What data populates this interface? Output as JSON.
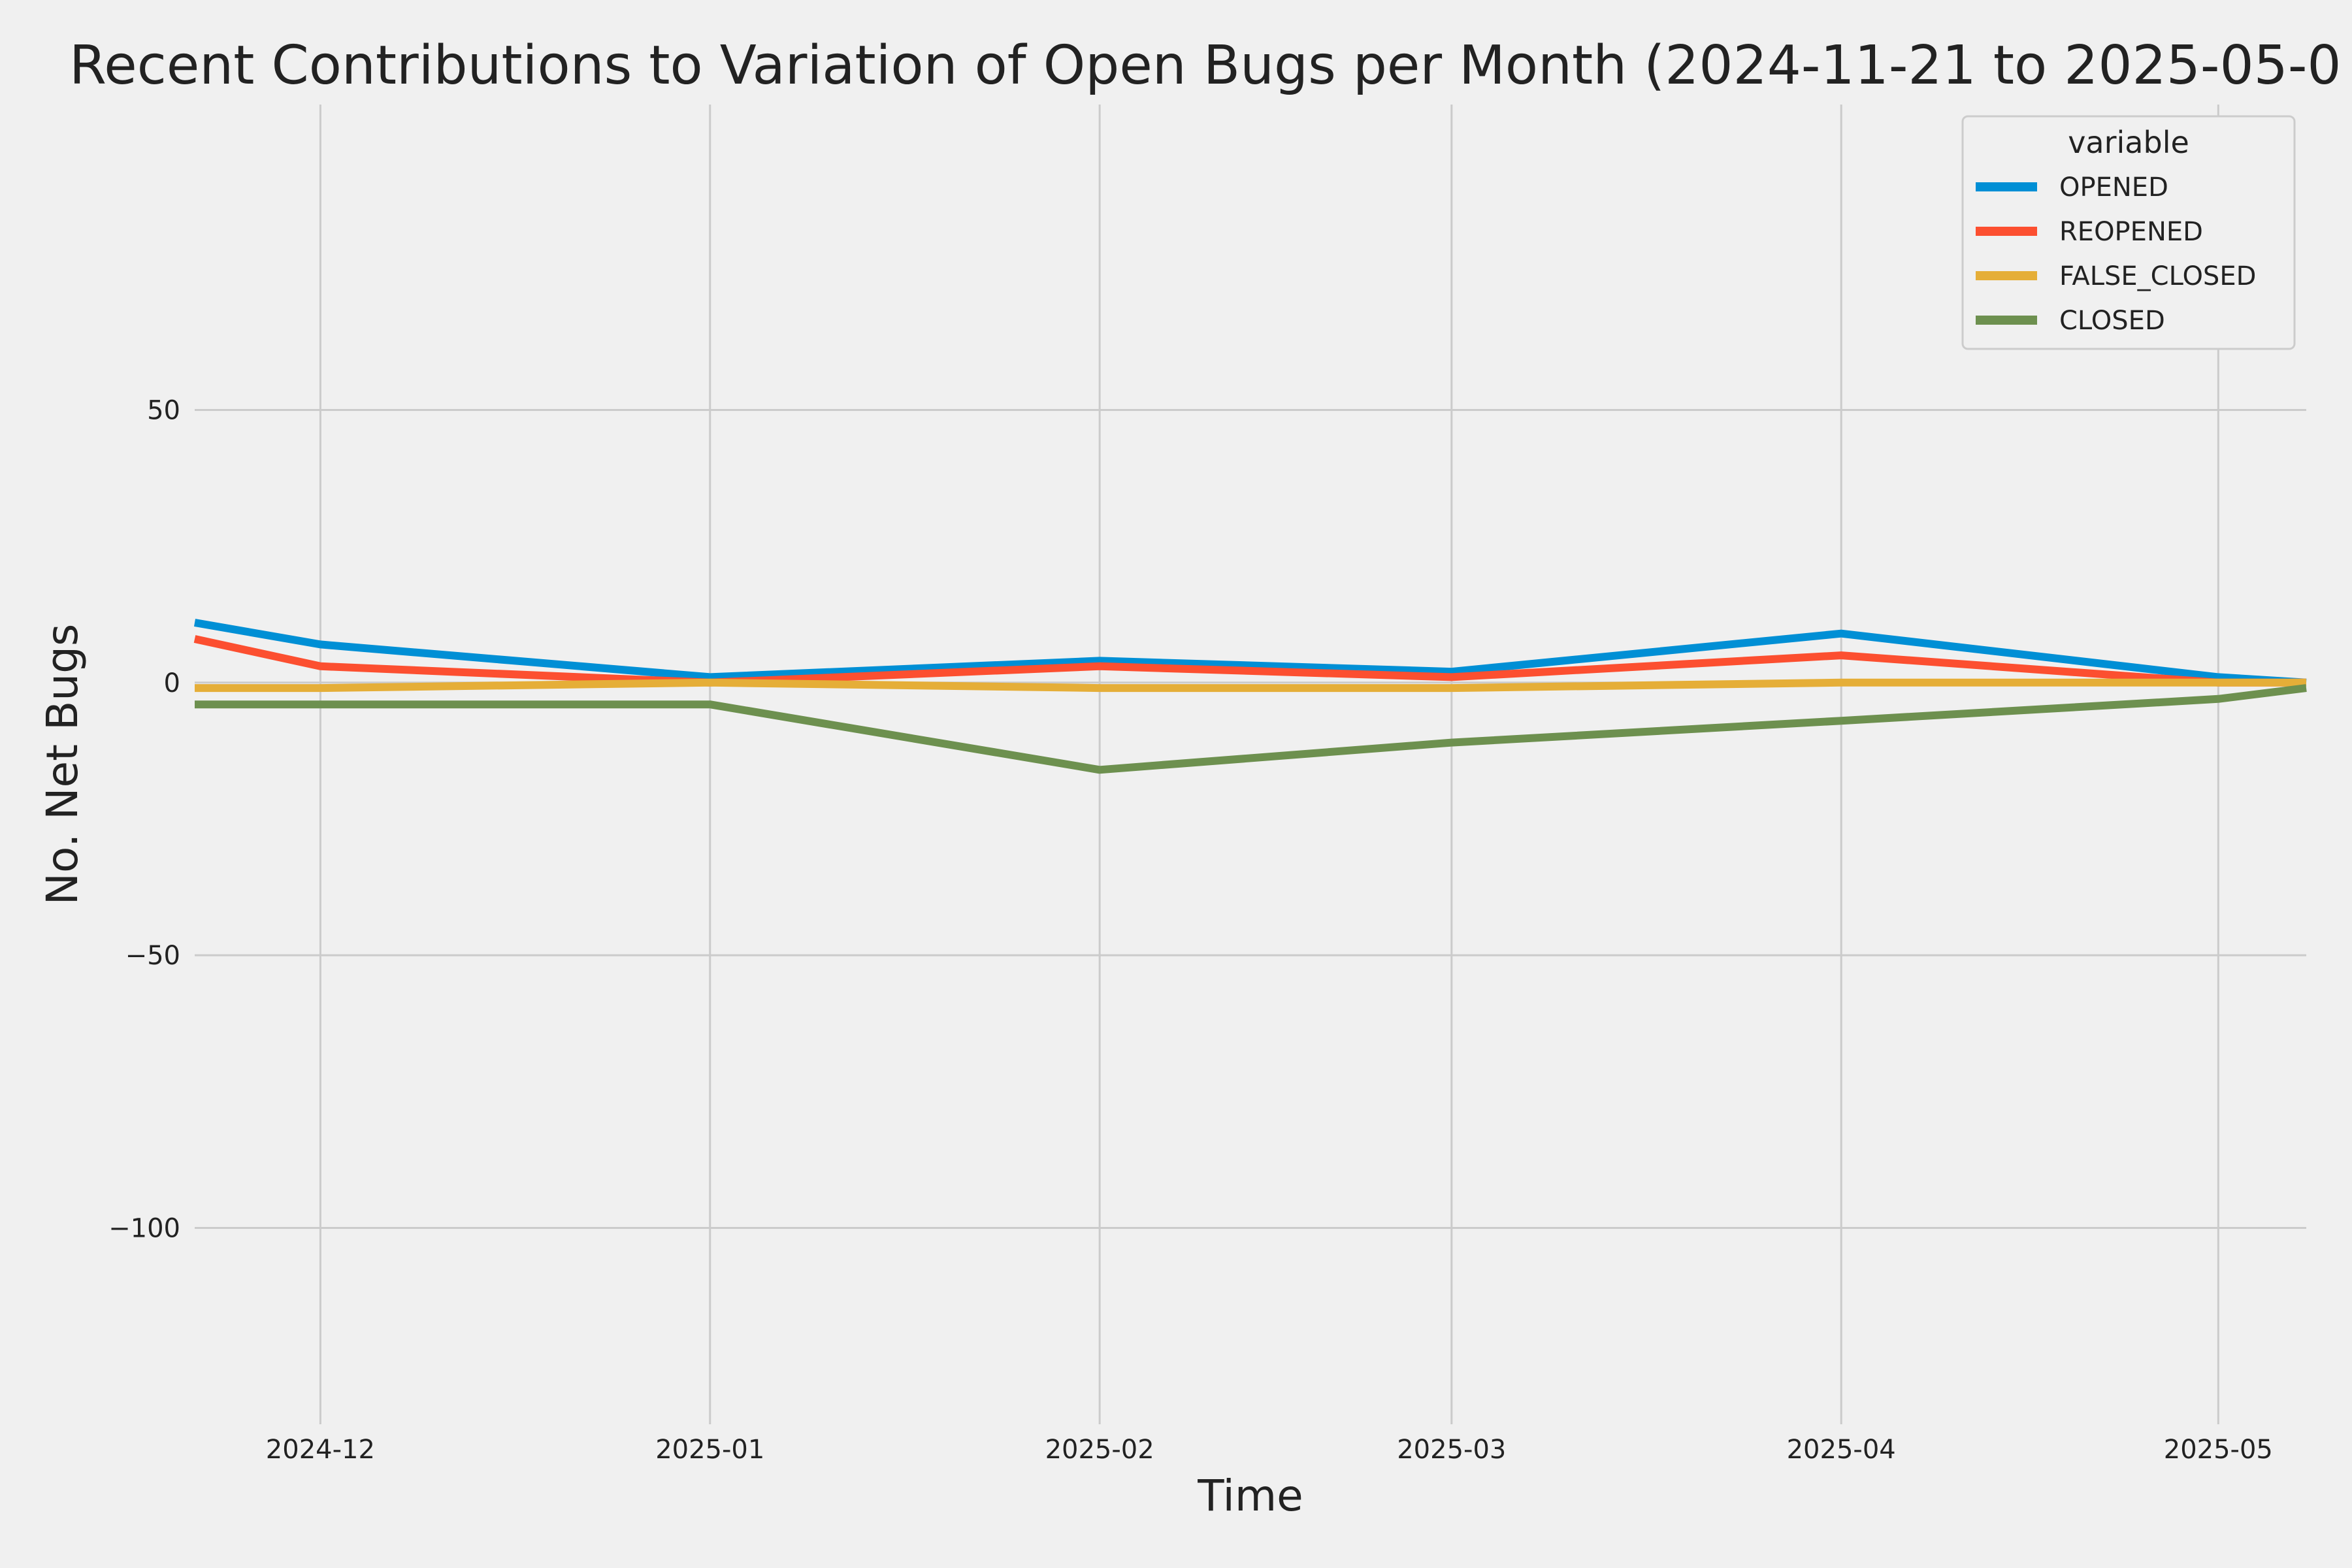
{
  "chart_data": {
    "type": "line",
    "title": "Recent Contributions to Variation of Open Bugs per Month (2024-11-21 to 2025-05-0",
    "xlabel": "Time",
    "ylabel": "No. Net Bugs",
    "x": [
      "2024-11-21",
      "2024-12-01",
      "2025-01-01",
      "2025-02-01",
      "2025-03-01",
      "2025-04-01",
      "2025-05-01",
      "2025-05-08"
    ],
    "xlim": [
      "2024-11-21",
      "2025-05-08"
    ],
    "ylim": [
      -136,
      106
    ],
    "x_ticks": [
      "2024-12",
      "2025-01",
      "2025-02",
      "2025-03",
      "2025-04",
      "2025-05"
    ],
    "x_tick_dates": [
      "2024-12-01",
      "2025-01-01",
      "2025-02-01",
      "2025-03-01",
      "2025-04-01",
      "2025-05-01"
    ],
    "y_ticks": [
      50,
      0,
      -50,
      -100
    ],
    "y_tick_labels": [
      "50",
      "0",
      "−50",
      "−100"
    ],
    "grid": true,
    "legend": {
      "title": "variable",
      "position": "top-right"
    },
    "series": [
      {
        "name": "OPENED",
        "color": "#008fd5",
        "values": [
          11,
          7,
          1,
          4,
          2,
          9,
          1,
          0
        ]
      },
      {
        "name": "REOPENED",
        "color": "#fc4f30",
        "values": [
          8,
          3,
          0,
          3,
          1,
          5,
          0,
          0
        ]
      },
      {
        "name": "FALSE_CLOSED",
        "color": "#e5ae38",
        "values": [
          -1,
          -1,
          0,
          -1,
          -1,
          0,
          0,
          0
        ]
      },
      {
        "name": "CLOSED",
        "color": "#6d904f",
        "values": [
          -4,
          -4,
          -4,
          -16,
          -11,
          -7,
          -3,
          -1
        ]
      }
    ]
  }
}
